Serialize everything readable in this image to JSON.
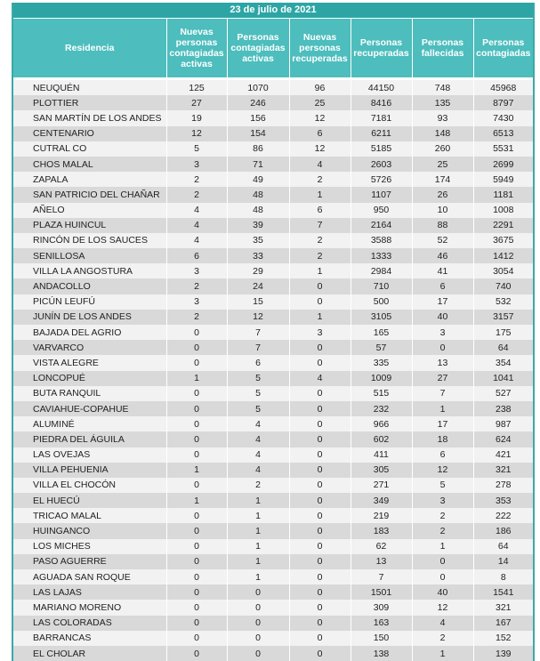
{
  "title": "23 de julio de 2021",
  "headers": [
    "Residencia",
    "Nuevas personas contagiadas activas",
    "Personas contagiadas activas",
    "Nuevas personas recuperadas",
    "Personas recuperadas",
    "Personas fallecidas",
    "Personas contagiadas"
  ],
  "rows": [
    [
      "NEUQUÉN",
      "125",
      "1070",
      "96",
      "44150",
      "748",
      "45968"
    ],
    [
      "PLOTTIER",
      "27",
      "246",
      "25",
      "8416",
      "135",
      "8797"
    ],
    [
      "SAN MARTÍN DE LOS ANDES",
      "19",
      "156",
      "12",
      "7181",
      "93",
      "7430"
    ],
    [
      "CENTENARIO",
      "12",
      "154",
      "6",
      "6211",
      "148",
      "6513"
    ],
    [
      "CUTRAL CO",
      "5",
      "86",
      "12",
      "5185",
      "260",
      "5531"
    ],
    [
      "CHOS MALAL",
      "3",
      "71",
      "4",
      "2603",
      "25",
      "2699"
    ],
    [
      "ZAPALA",
      "2",
      "49",
      "2",
      "5726",
      "174",
      "5949"
    ],
    [
      "SAN PATRICIO DEL CHAÑAR",
      "2",
      "48",
      "1",
      "1107",
      "26",
      "1181"
    ],
    [
      "AÑELO",
      "4",
      "48",
      "6",
      "950",
      "10",
      "1008"
    ],
    [
      "PLAZA HUINCUL",
      "4",
      "39",
      "7",
      "2164",
      "88",
      "2291"
    ],
    [
      "RINCÓN DE LOS SAUCES",
      "4",
      "35",
      "2",
      "3588",
      "52",
      "3675"
    ],
    [
      "SENILLOSA",
      "6",
      "33",
      "2",
      "1333",
      "46",
      "1412"
    ],
    [
      "VILLA LA ANGOSTURA",
      "3",
      "29",
      "1",
      "2984",
      "41",
      "3054"
    ],
    [
      "ANDACOLLO",
      "2",
      "24",
      "0",
      "710",
      "6",
      "740"
    ],
    [
      "PICÚN LEUFÚ",
      "3",
      "15",
      "0",
      "500",
      "17",
      "532"
    ],
    [
      "JUNÍN DE LOS ANDES",
      "2",
      "12",
      "1",
      "3105",
      "40",
      "3157"
    ],
    [
      "BAJADA DEL AGRIO",
      "0",
      "7",
      "3",
      "165",
      "3",
      "175"
    ],
    [
      "VARVARCO",
      "0",
      "7",
      "0",
      "57",
      "0",
      "64"
    ],
    [
      "VISTA ALEGRE",
      "0",
      "6",
      "0",
      "335",
      "13",
      "354"
    ],
    [
      "LONCOPUÉ",
      "1",
      "5",
      "4",
      "1009",
      "27",
      "1041"
    ],
    [
      "BUTA RANQUIL",
      "0",
      "5",
      "0",
      "515",
      "7",
      "527"
    ],
    [
      "CAVIAHUE-COPAHUE",
      "0",
      "5",
      "0",
      "232",
      "1",
      "238"
    ],
    [
      "ALUMINÉ",
      "0",
      "4",
      "0",
      "966",
      "17",
      "987"
    ],
    [
      "PIEDRA DEL ÁGUILA",
      "0",
      "4",
      "0",
      "602",
      "18",
      "624"
    ],
    [
      "LAS OVEJAS",
      "0",
      "4",
      "0",
      "411",
      "6",
      "421"
    ],
    [
      "VILLA PEHUENIA",
      "1",
      "4",
      "0",
      "305",
      "12",
      "321"
    ],
    [
      "VILLA EL CHOCÓN",
      "0",
      "2",
      "0",
      "271",
      "5",
      "278"
    ],
    [
      "EL HUECÚ",
      "1",
      "1",
      "0",
      "349",
      "3",
      "353"
    ],
    [
      "TRICAO MALAL",
      "0",
      "1",
      "0",
      "219",
      "2",
      "222"
    ],
    [
      "HUINGANCO",
      "0",
      "1",
      "0",
      "183",
      "2",
      "186"
    ],
    [
      "LOS MICHES",
      "0",
      "1",
      "0",
      "62",
      "1",
      "64"
    ],
    [
      "PASO AGUERRE",
      "0",
      "1",
      "0",
      "13",
      "0",
      "14"
    ],
    [
      "AGUADA SAN ROQUE",
      "0",
      "1",
      "0",
      "7",
      "0",
      "8"
    ],
    [
      "LAS LAJAS",
      "0",
      "0",
      "0",
      "1501",
      "40",
      "1541"
    ],
    [
      "MARIANO MORENO",
      "0",
      "0",
      "0",
      "309",
      "12",
      "321"
    ],
    [
      "LAS COLORADAS",
      "0",
      "0",
      "0",
      "163",
      "4",
      "167"
    ],
    [
      "BARRANCAS",
      "0",
      "0",
      "0",
      "150",
      "2",
      "152"
    ],
    [
      "EL CHOLAR",
      "0",
      "0",
      "0",
      "138",
      "1",
      "139"
    ]
  ],
  "colors": {
    "title_bg": "#2ea5a5",
    "header_bg": "#4dbdbd",
    "row_light": "#f2f2f2",
    "row_dark": "#d9d9d9"
  }
}
